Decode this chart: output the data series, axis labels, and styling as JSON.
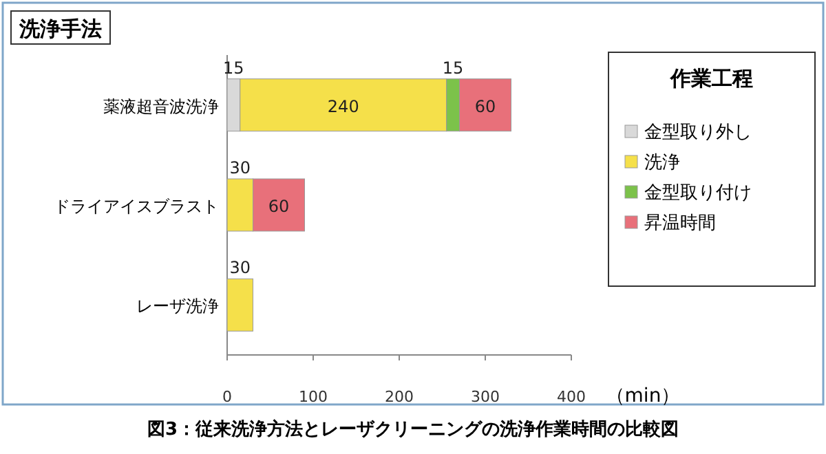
{
  "chart_data": {
    "type": "bar",
    "orientation": "horizontal",
    "stacked": true,
    "title": "洗浄手法",
    "legend_title": "作業工程",
    "xlabel": "（min）",
    "categories": [
      "薬液超音波洗浄",
      "ドライアイスブラスト",
      "レーザ洗浄"
    ],
    "series": [
      {
        "name": "金型取り外し",
        "color": "#d9d9d9",
        "values": [
          15,
          null,
          null
        ]
      },
      {
        "name": "洗浄",
        "color": "#f5e04a",
        "values": [
          240,
          30,
          30
        ]
      },
      {
        "name": "金型取り付け",
        "color": "#7cc24a",
        "values": [
          15,
          null,
          null
        ]
      },
      {
        "name": "昇温時間",
        "color": "#e8707a",
        "values": [
          60,
          60,
          null
        ]
      }
    ],
    "xlim": [
      0,
      400
    ],
    "xticks": [
      0,
      100,
      200,
      300,
      400
    ],
    "data_labels": true,
    "legend": "right",
    "annotations": [
      "図3：従来洗浄方法とレーザクリーニングの洗浄作業時間の比較図"
    ]
  }
}
